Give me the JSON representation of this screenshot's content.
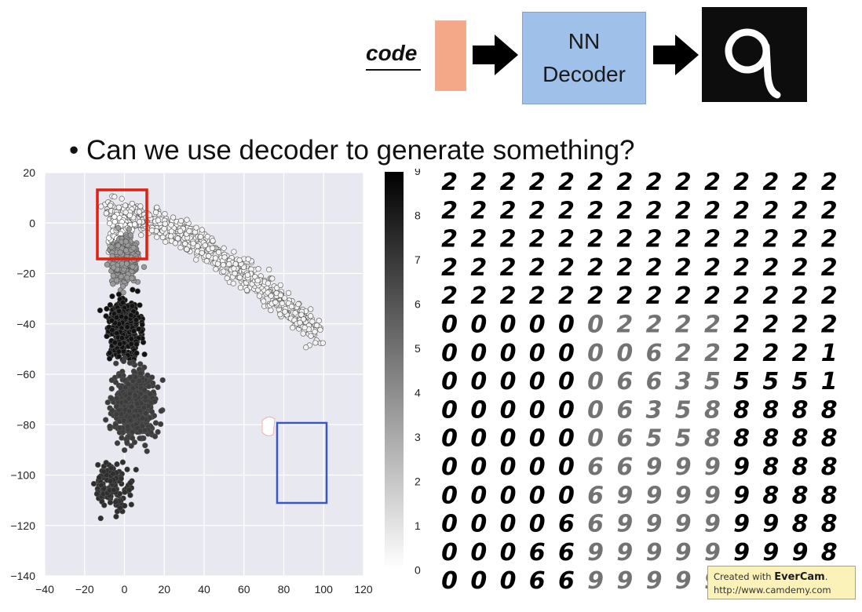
{
  "top": {
    "code_label": "code",
    "decoder_line1": "NN",
    "decoder_line2": "Decoder",
    "arrow_icon": "right-arrow-icon",
    "output_icon": "handwritten-digit-image"
  },
  "bullet": {
    "marker": "•",
    "text": "Can we use decoder to generate something?"
  },
  "scatter": {
    "x_ticks": [
      "−40",
      "−20",
      "0",
      "20",
      "40",
      "60",
      "80",
      "100",
      "120"
    ],
    "y_ticks": [
      "20",
      "0",
      "−20",
      "−40",
      "−60",
      "−80",
      "−100",
      "−120",
      "−140"
    ],
    "red_box_color": "#e02010",
    "blue_box_color": "#3a55c4"
  },
  "colorbar": {
    "ticks": [
      "9",
      "8",
      "7",
      "6",
      "5",
      "4",
      "3",
      "2",
      "1",
      "0"
    ]
  },
  "digit_grid": {
    "rows": [
      "22222222222222",
      "22222222222222",
      "22222222222222",
      "22222222222222",
      "22222222222222",
      "00000022222222",
      "00000006222221",
      "00000066355551",
      "00000063588888",
      "00000065588888",
      "00000669999888",
      "00000699999888",
      "00006699999988",
      "00066999999998",
      "00066999999998"
    ]
  },
  "watermark": {
    "line1_prefix": "Created with ",
    "line1_brand": "EverCam",
    "line1_suffix": ".",
    "line2": "http://www.camdemy.com"
  },
  "chart_data": {
    "type": "scatter",
    "title": "",
    "xlabel": "",
    "ylabel": "",
    "xlim": [
      -40,
      120
    ],
    "ylim": [
      -140,
      20
    ],
    "grid": true,
    "color_scale": "digit class 0-9 (white to black)",
    "clusters": [
      {
        "shade": "light",
        "points_x": [
          -10,
          0,
          20,
          40,
          60,
          80,
          95
        ],
        "points_y": [
          0,
          5,
          0,
          -5,
          -15,
          -30,
          -45
        ]
      },
      {
        "shade": "dark",
        "points_x": [
          -12,
          -5,
          0,
          10,
          20,
          30
        ],
        "points_y": [
          -20,
          -40,
          -60,
          -80,
          -100,
          -120
        ]
      }
    ]
  }
}
